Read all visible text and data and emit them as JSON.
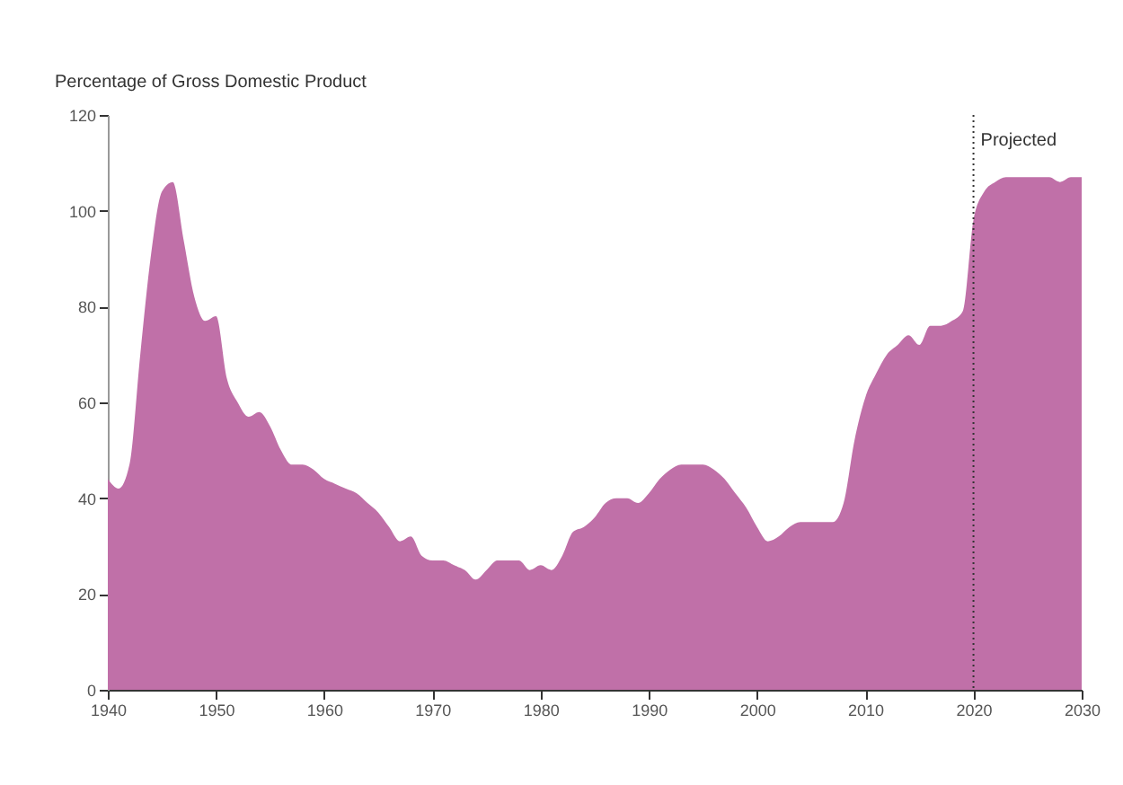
{
  "chart_data": {
    "type": "area",
    "ylabel": "Percentage of Gross Domestic Product",
    "x": [
      1940,
      1941,
      1942,
      1943,
      1944,
      1945,
      1946,
      1947,
      1948,
      1949,
      1950,
      1951,
      1952,
      1953,
      1954,
      1955,
      1956,
      1957,
      1958,
      1959,
      1960,
      1961,
      1962,
      1963,
      1964,
      1965,
      1966,
      1967,
      1968,
      1969,
      1970,
      1971,
      1972,
      1973,
      1974,
      1975,
      1976,
      1977,
      1978,
      1979,
      1980,
      1981,
      1982,
      1983,
      1984,
      1985,
      1986,
      1987,
      1988,
      1989,
      1990,
      1991,
      1992,
      1993,
      1994,
      1995,
      1996,
      1997,
      1998,
      1999,
      2000,
      2001,
      2002,
      2003,
      2004,
      2005,
      2006,
      2007,
      2008,
      2009,
      2010,
      2011,
      2012,
      2013,
      2014,
      2015,
      2016,
      2017,
      2018,
      2019,
      2020,
      2021,
      2022,
      2023,
      2024,
      2025,
      2026,
      2027,
      2028,
      2029,
      2030
    ],
    "series": [
      {
        "color": "#c070a8",
        "values": [
          44,
          42,
          47,
          70,
          91,
          104,
          106,
          94,
          82,
          77,
          78,
          65,
          60,
          57,
          58,
          55,
          50,
          47,
          47,
          46,
          44,
          43,
          42,
          41,
          39,
          37,
          34,
          31,
          32,
          28,
          27,
          27,
          26,
          25,
          23,
          25,
          27,
          27,
          27,
          25,
          26,
          25,
          28,
          33,
          34,
          36,
          39,
          40,
          40,
          39,
          41,
          44,
          46,
          47,
          47,
          47,
          46,
          44,
          41,
          38,
          34,
          31,
          32,
          34,
          35,
          35,
          35,
          35,
          39,
          52,
          61,
          66,
          70,
          72,
          74,
          72,
          76,
          76,
          77,
          79,
          98,
          104,
          106,
          107,
          107,
          107,
          107,
          107,
          106,
          107,
          107
        ]
      }
    ],
    "xlim": [
      1940,
      2030
    ],
    "xticks": [
      1940,
      1950,
      1960,
      1970,
      1980,
      1990,
      2000,
      2010,
      2020,
      2030
    ],
    "ylim": [
      0,
      120
    ],
    "yticks": [
      0,
      20,
      40,
      60,
      80,
      100,
      120
    ],
    "grid": false,
    "ref_lines": [
      {
        "axis": "x",
        "value": 2020,
        "label": "Projected",
        "line_style": "dotted"
      }
    ]
  }
}
